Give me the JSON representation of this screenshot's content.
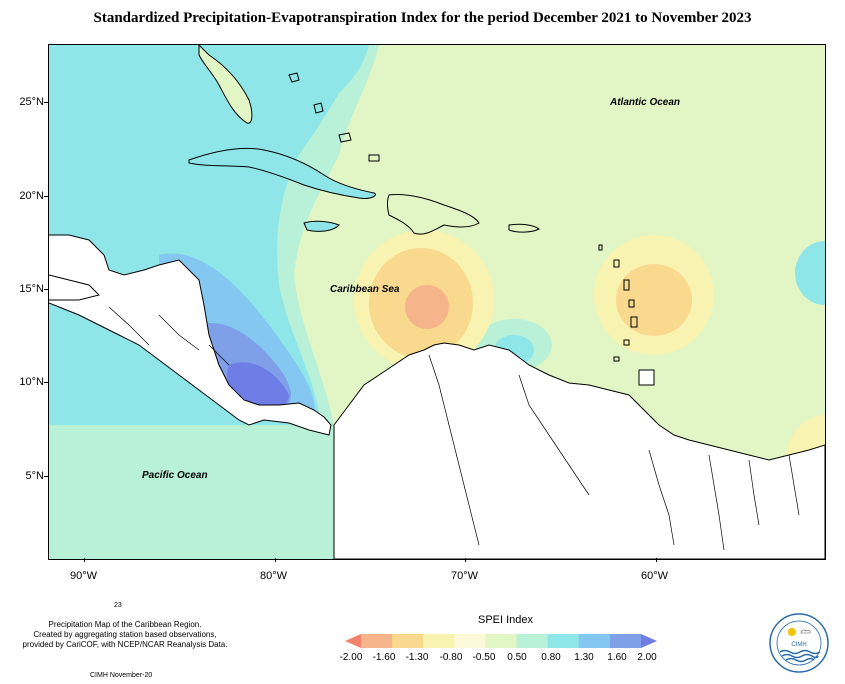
{
  "title": "Standardized Precipitation-Evapotranspiration Index for the period December 2021 to November 2023",
  "map": {
    "latitude_labels": [
      "25°N",
      "20°N",
      "15°N",
      "10°N",
      "5°N"
    ],
    "longitude_labels": [
      "90°W",
      "80°W",
      "70°W",
      "60°W"
    ],
    "place_labels": {
      "atlantic": "Atlantic Ocean",
      "caribbean": "Caribbean Sea",
      "pacific": "Pacific Ocean"
    }
  },
  "legend": {
    "title": "SPEI Index",
    "values": [
      "-2.00",
      "-1.60",
      "-1.30",
      "-0.80",
      "-0.50",
      "0.50",
      "0.80",
      "1.30",
      "1.60",
      "2.00"
    ],
    "colors": [
      "#f2836b",
      "#f5b48a",
      "#f8d98e",
      "#f8f3b0",
      "#fbf9d8",
      "#e2f5c4",
      "#b9f0d8",
      "#8fe6e8",
      "#84c8f2",
      "#7f9fe8",
      "#6f7de6"
    ]
  },
  "footnote": {
    "page_number": "23",
    "lines": [
      "Precipitation Map of the Caribbean Region.",
      "Created by aggregating station based observations,",
      "provided by CariCOF, with NCEP/NCAR Reanalysis Data."
    ],
    "credit": "CIMH November-20"
  },
  "logo": {
    "text": "CIMH"
  }
}
